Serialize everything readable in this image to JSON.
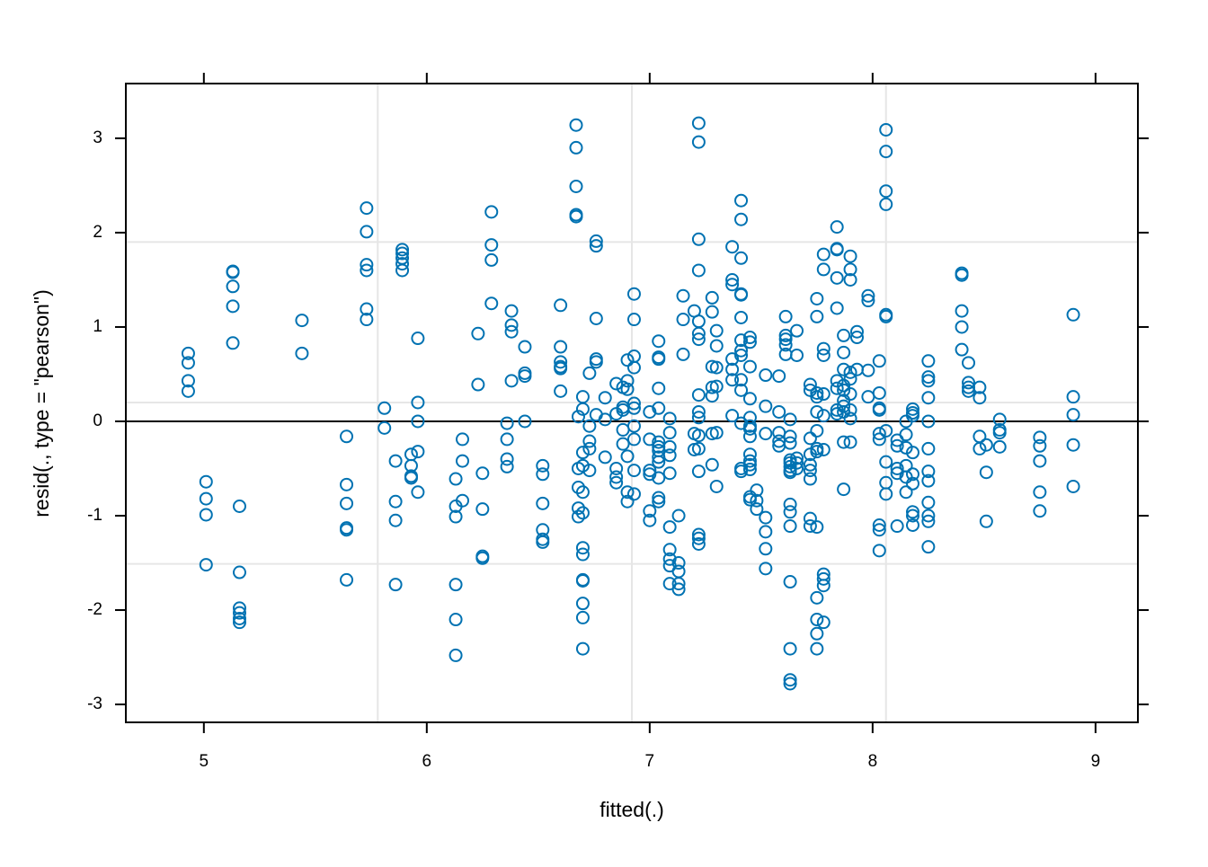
{
  "chart_data": {
    "type": "scatter",
    "x_label": "fitted(.)",
    "y_label": "resid(., type = \"pearson\")",
    "xlim": [
      4.65,
      9.19
    ],
    "ylim": [
      -3.19,
      3.58
    ],
    "xticks": [
      5,
      6,
      7,
      8,
      9
    ],
    "yticks": [
      -3,
      -2,
      -1,
      0,
      1,
      2,
      3
    ],
    "grid_x": [
      5.78,
      6.92,
      8.06
    ],
    "grid_y": [
      -1.51,
      0.2,
      1.9
    ],
    "hline": 0,
    "color": "#0072b2",
    "x": [
      4.93,
      4.93,
      4.93,
      4.93,
      5.01,
      5.01,
      5.01,
      5.01,
      5.13,
      5.13,
      5.13,
      5.13,
      5.13,
      5.16,
      5.16,
      5.16,
      5.16,
      5.16,
      5.16,
      5.44,
      5.44,
      5.64,
      5.64,
      5.64,
      5.64,
      5.64,
      5.64,
      5.73,
      5.73,
      5.73,
      5.73,
      5.73,
      5.73,
      5.81,
      5.81,
      5.86,
      5.86,
      5.86,
      5.86,
      5.89,
      5.89,
      5.89,
      5.89,
      5.89,
      5.93,
      5.93,
      5.93,
      5.93,
      5.96,
      5.96,
      5.96,
      5.96,
      5.96,
      6.13,
      6.13,
      6.13,
      6.13,
      6.13,
      6.13,
      6.16,
      6.16,
      6.16,
      6.23,
      6.23,
      6.25,
      6.25,
      6.25,
      6.25,
      6.29,
      6.29,
      6.29,
      6.29,
      6.36,
      6.36,
      6.36,
      6.36,
      6.38,
      6.38,
      6.38,
      6.38,
      6.44,
      6.44,
      6.44,
      6.44,
      6.52,
      6.52,
      6.52,
      6.52,
      6.52,
      6.52,
      6.6,
      6.6,
      6.6,
      6.6,
      6.6,
      6.6,
      6.67,
      6.67,
      6.67,
      6.67,
      6.67,
      6.68,
      6.68,
      6.68,
      6.68,
      6.68,
      6.7,
      6.7,
      6.7,
      6.7,
      6.7,
      6.7,
      6.7,
      6.7,
      6.7,
      6.7,
      6.7,
      6.7,
      6.7,
      6.73,
      6.73,
      6.73,
      6.73,
      6.73,
      6.76,
      6.76,
      6.76,
      6.76,
      6.76,
      6.76,
      6.8,
      6.8,
      6.8,
      6.85,
      6.85,
      6.85,
      6.85,
      6.85,
      6.88,
      6.88,
      6.88,
      6.88,
      6.88,
      6.9,
      6.9,
      6.9,
      6.9,
      6.9,
      6.9,
      6.93,
      6.93,
      6.93,
      6.93,
      6.93,
      6.93,
      6.93,
      6.93,
      6.93,
      6.93,
      7.0,
      7.0,
      7.0,
      7.0,
      7.0,
      7.0,
      7.04,
      7.04,
      7.04,
      7.04,
      7.04,
      7.04,
      7.04,
      7.04,
      7.04,
      7.04,
      7.04,
      7.04,
      7.04,
      7.09,
      7.09,
      7.09,
      7.09,
      7.09,
      7.09,
      7.09,
      7.09,
      7.09,
      7.09,
      7.13,
      7.13,
      7.13,
      7.13,
      7.13,
      7.15,
      7.15,
      7.15,
      7.2,
      7.2,
      7.2,
      7.22,
      7.22,
      7.22,
      7.22,
      7.22,
      7.22,
      7.22,
      7.22,
      7.22,
      7.22,
      7.22,
      7.22,
      7.22,
      7.22,
      7.22,
      7.22,
      7.28,
      7.28,
      7.28,
      7.28,
      7.28,
      7.28,
      7.28,
      7.3,
      7.3,
      7.3,
      7.3,
      7.3,
      7.3,
      7.37,
      7.37,
      7.37,
      7.37,
      7.37,
      7.37,
      7.37,
      7.41,
      7.41,
      7.41,
      7.41,
      7.41,
      7.41,
      7.41,
      7.41,
      7.41,
      7.41,
      7.41,
      7.41,
      7.41,
      7.41,
      7.45,
      7.45,
      7.45,
      7.45,
      7.45,
      7.45,
      7.45,
      7.45,
      7.45,
      7.45,
      7.45,
      7.45,
      7.45,
      7.45,
      7.48,
      7.48,
      7.48,
      7.52,
      7.52,
      7.52,
      7.52,
      7.52,
      7.52,
      7.52,
      7.58,
      7.58,
      7.58,
      7.58,
      7.58,
      7.61,
      7.61,
      7.61,
      7.61,
      7.61,
      7.63,
      7.63,
      7.63,
      7.63,
      7.63,
      7.63,
      7.63,
      7.63,
      7.63,
      7.63,
      7.63,
      7.63,
      7.63,
      7.63,
      7.63,
      7.66,
      7.66,
      7.66,
      7.66,
      7.66,
      7.72,
      7.72,
      7.72,
      7.72,
      7.72,
      7.72,
      7.72,
      7.72,
      7.72,
      7.75,
      7.75,
      7.75,
      7.75,
      7.75,
      7.75,
      7.75,
      7.75,
      7.75,
      7.75,
      7.75,
      7.75,
      7.75,
      7.78,
      7.78,
      7.78,
      7.78,
      7.78,
      7.78,
      7.78,
      7.78,
      7.78,
      7.78,
      7.78,
      7.84,
      7.84,
      7.84,
      7.84,
      7.84,
      7.84,
      7.84,
      7.84,
      7.84,
      7.87,
      7.87,
      7.87,
      7.87,
      7.87,
      7.87,
      7.87,
      7.87,
      7.87,
      7.87,
      7.9,
      7.9,
      7.9,
      7.9,
      7.9,
      7.9,
      7.9,
      7.9,
      7.9,
      7.93,
      7.93,
      7.93,
      7.98,
      7.98,
      7.98,
      7.98,
      8.03,
      8.03,
      8.03,
      8.03,
      8.03,
      8.03,
      8.03,
      8.03,
      8.03,
      8.06,
      8.06,
      8.06,
      8.06,
      8.06,
      8.06,
      8.06,
      8.06,
      8.06,
      8.06,
      8.11,
      8.11,
      8.11,
      8.11,
      8.11,
      8.15,
      8.15,
      8.15,
      8.15,
      8.15,
      8.15,
      8.18,
      8.18,
      8.18,
      8.18,
      8.18,
      8.18,
      8.18,
      8.18,
      8.18,
      8.25,
      8.25,
      8.25,
      8.25,
      8.25,
      8.25,
      8.25,
      8.25,
      8.25,
      8.25,
      8.25,
      8.25,
      8.4,
      8.4,
      8.4,
      8.4,
      8.4,
      8.43,
      8.43,
      8.43,
      8.43,
      8.48,
      8.48,
      8.48,
      8.48,
      8.51,
      8.51,
      8.51,
      8.57,
      8.57,
      8.57,
      8.57,
      8.75,
      8.75,
      8.75,
      8.75,
      8.75,
      8.9,
      8.9,
      8.9,
      8.9,
      8.9
    ],
    "values": [
      0.72,
      0.62,
      0.43,
      0.32,
      -0.64,
      -0.82,
      -0.99,
      -1.52,
      1.59,
      1.58,
      1.43,
      1.22,
      0.83,
      -0.9,
      -1.6,
      -1.98,
      -2.03,
      -2.09,
      -2.13,
      1.07,
      0.72,
      -0.16,
      -0.67,
      -0.87,
      -1.13,
      -1.15,
      -1.68,
      2.26,
      2.01,
      1.66,
      1.6,
      1.19,
      1.08,
      0.14,
      -0.07,
      -0.42,
      -0.85,
      -1.05,
      -1.73,
      1.82,
      1.78,
      1.73,
      1.67,
      1.6,
      -0.35,
      -0.47,
      -0.58,
      -0.6,
      0.88,
      0.2,
      0.0,
      -0.32,
      -0.75,
      -0.61,
      -0.9,
      -1.01,
      -1.73,
      -2.1,
      -2.48,
      -0.19,
      -0.42,
      -0.84,
      0.93,
      0.39,
      -0.55,
      -0.93,
      -1.43,
      -1.45,
      2.22,
      1.87,
      1.71,
      1.25,
      -0.19,
      -0.4,
      -0.48,
      -0.02,
      1.17,
      1.02,
      0.95,
      0.43,
      0.79,
      0.51,
      0.48,
      0.0,
      -0.47,
      -0.56,
      -0.87,
      -1.15,
      -1.25,
      -1.28,
      1.23,
      0.79,
      0.63,
      0.58,
      0.56,
      0.32,
      3.14,
      2.9,
      2.49,
      2.19,
      2.17,
      0.05,
      -0.5,
      -0.7,
      -0.92,
      -1.01,
      0.26,
      0.13,
      -0.33,
      -0.47,
      -1.34,
      -1.41,
      -1.68,
      -1.69,
      -1.93,
      -2.08,
      -2.41,
      -0.75,
      -0.97,
      -0.05,
      -0.21,
      -0.29,
      -0.52,
      0.51,
      1.91,
      1.86,
      1.09,
      0.66,
      0.63,
      0.07,
      0.25,
      0.02,
      -0.38,
      -0.5,
      -0.59,
      -0.65,
      0.4,
      0.08,
      -0.24,
      -0.09,
      0.12,
      0.15,
      0.36,
      0.65,
      0.43,
      0.34,
      -0.37,
      -0.75,
      -0.85,
      1.35,
      1.08,
      0.69,
      0.57,
      0.19,
      0.14,
      -0.05,
      -0.19,
      -0.52,
      -0.77,
      0.1,
      -0.19,
      -0.52,
      -0.56,
      -0.95,
      -1.05,
      0.85,
      0.68,
      0.66,
      0.35,
      0.14,
      -0.22,
      -0.27,
      -0.31,
      -0.38,
      -0.43,
      -0.6,
      -0.81,
      -0.85,
      0.03,
      -0.12,
      -0.27,
      -0.36,
      -0.55,
      -1.12,
      -1.36,
      -1.46,
      -1.53,
      -1.72,
      -1.0,
      -1.5,
      -1.59,
      -1.72,
      -1.78,
      1.33,
      1.08,
      0.71,
      1.17,
      -0.13,
      -0.3,
      3.16,
      2.96,
      1.93,
      1.6,
      1.06,
      0.93,
      0.87,
      0.28,
      0.1,
      0.04,
      -0.15,
      -0.29,
      -0.53,
      -1.2,
      -1.24,
      -1.3,
      1.31,
      1.16,
      0.58,
      0.36,
      0.27,
      -0.13,
      -0.46,
      0.96,
      0.8,
      0.57,
      0.37,
      -0.12,
      -0.69,
      1.85,
      1.5,
      1.45,
      0.66,
      0.55,
      0.44,
      0.06,
      2.34,
      2.14,
      1.73,
      1.35,
      1.34,
      1.1,
      0.86,
      0.75,
      0.7,
      0.44,
      0.33,
      -0.02,
      -0.5,
      -0.53,
      0.89,
      0.84,
      0.58,
      0.24,
      0.04,
      -0.05,
      -0.08,
      -0.16,
      -0.35,
      -0.42,
      -0.46,
      -0.51,
      -0.8,
      -0.83,
      -0.73,
      -0.84,
      -0.93,
      0.49,
      0.16,
      -0.13,
      -1.02,
      -1.17,
      -1.35,
      -1.56,
      0.48,
      0.1,
      -0.12,
      -0.21,
      -0.26,
      1.11,
      0.91,
      0.87,
      0.81,
      0.71,
      0.02,
      -0.16,
      -0.23,
      -0.41,
      -0.44,
      -0.48,
      -0.52,
      -0.54,
      -0.88,
      -0.96,
      -1.11,
      -1.7,
      -2.41,
      -2.74,
      -2.78,
      0.96,
      0.7,
      -0.39,
      -0.44,
      -0.5,
      0.39,
      0.33,
      -0.18,
      -0.35,
      -0.46,
      -0.52,
      -0.61,
      -1.03,
      -1.11,
      1.3,
      1.11,
      0.3,
      0.26,
      0.1,
      -0.1,
      -0.29,
      -0.32,
      -1.12,
      -1.87,
      -2.1,
      -2.25,
      -2.41,
      1.77,
      1.61,
      0.77,
      0.7,
      0.29,
      0.06,
      -0.3,
      -1.62,
      -1.67,
      -1.74,
      -2.13,
      2.06,
      1.83,
      1.82,
      1.52,
      1.2,
      0.43,
      0.35,
      0.12,
      0.08,
      0.91,
      0.73,
      0.55,
      0.38,
      0.33,
      0.22,
      0.16,
      0.1,
      -0.22,
      -0.72,
      1.75,
      1.61,
      1.5,
      0.52,
      0.45,
      0.29,
      0.12,
      0.03,
      -0.22,
      0.95,
      0.89,
      0.55,
      1.33,
      1.28,
      0.54,
      0.26,
      0.64,
      0.3,
      0.14,
      0.12,
      -0.13,
      -0.19,
      -1.1,
      -1.15,
      -1.37,
      3.09,
      2.86,
      2.44,
      2.3,
      1.13,
      1.11,
      -0.1,
      -0.43,
      -0.65,
      -0.77,
      -0.2,
      -0.26,
      -0.5,
      -0.55,
      -1.11,
      0.0,
      -0.14,
      -0.28,
      -0.47,
      -0.59,
      -0.75,
      0.13,
      0.09,
      0.06,
      -0.33,
      -0.56,
      -0.66,
      -0.96,
      -1.0,
      -1.1,
      0.64,
      0.47,
      0.43,
      0.25,
      0.0,
      -0.29,
      -0.53,
      -0.63,
      -0.86,
      -1.0,
      -1.06,
      -1.33,
      1.57,
      1.55,
      1.17,
      1.0,
      0.76,
      0.62,
      0.41,
      0.36,
      0.32,
      0.36,
      0.25,
      -0.16,
      -0.29,
      -0.25,
      -0.54,
      -1.06,
      0.02,
      -0.09,
      -0.12,
      -0.27,
      -0.17,
      -0.26,
      -0.42,
      -0.75,
      -0.95,
      1.13,
      0.26,
      0.07,
      -0.25,
      -0.69
    ]
  }
}
